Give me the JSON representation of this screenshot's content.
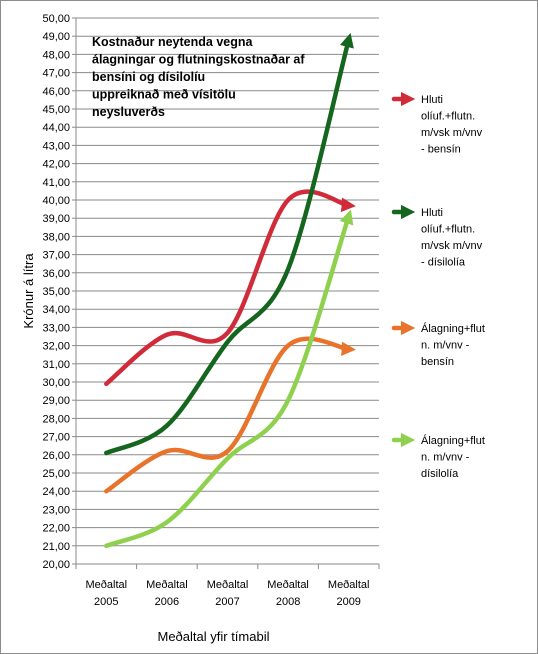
{
  "chart_data": {
    "type": "line",
    "title_lines": [
      "Kostnaður neytenda vegna",
      "álagningar og flutningskostnaðar af",
      "bensíni og dísilolíu",
      "uppreiknað með vísitölu",
      "neysluverðs"
    ],
    "xlabel": "Meðaltal yfir tímabil",
    "ylabel": "Krónur á lítra",
    "ylim": [
      20,
      50
    ],
    "ytick_step": 1,
    "ytick_labels": [
      "20,00",
      "21,00",
      "22,00",
      "23,00",
      "24,00",
      "25,00",
      "26,00",
      "27,00",
      "28,00",
      "29,00",
      "30,00",
      "31,00",
      "32,00",
      "33,00",
      "34,00",
      "35,00",
      "36,00",
      "37,00",
      "38,00",
      "39,00",
      "40,00",
      "41,00",
      "42,00",
      "43,00",
      "44,00",
      "45,00",
      "46,00",
      "47,00",
      "48,00",
      "49,00",
      "50,00"
    ],
    "categories": [
      [
        "Meðaltal",
        "2005"
      ],
      [
        "Meðaltal",
        "2006"
      ],
      [
        "Meðaltal",
        "2007"
      ],
      [
        "Meðaltal",
        "2008"
      ],
      [
        "Meðaltal",
        "2009"
      ]
    ],
    "legend_position": "right",
    "grid": "horizontal",
    "series": [
      {
        "name_lines": [
          "Hluti",
          "olíuf.+flutn.",
          "m/vsk m/vnv",
          "- bensín"
        ],
        "color": "#d12a38",
        "values": [
          29.9,
          32.6,
          32.7,
          40.0,
          39.7
        ]
      },
      {
        "name_lines": [
          "Hluti",
          "olíuf.+flutn.",
          "m/vsk m/vnv",
          "- dísilolía"
        ],
        "color": "#14651d",
        "values": [
          26.1,
          27.6,
          32.2,
          36.2,
          48.8
        ]
      },
      {
        "name_lines": [
          "Álagning+flut",
          "n. m/vnv -",
          "bensín"
        ],
        "color": "#e8732a",
        "values": [
          24.0,
          26.2,
          26.2,
          32.0,
          31.8
        ]
      },
      {
        "name_lines": [
          "Álagning+flut",
          "n. m/vnv -",
          "dísilolía"
        ],
        "color": "#8fd14f",
        "values": [
          21.0,
          22.3,
          25.8,
          29.0,
          39.1
        ]
      }
    ]
  }
}
